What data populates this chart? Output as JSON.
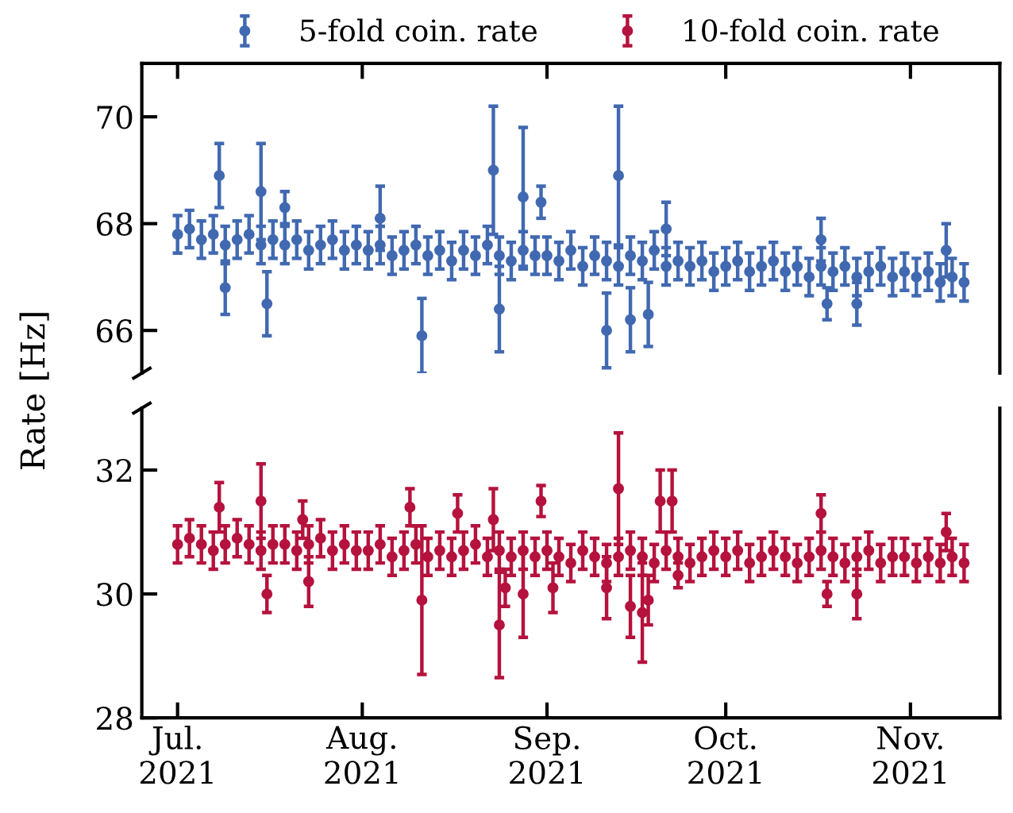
{
  "chart_data": [
    {
      "type": "scatter",
      "ylabel": "Rate [Hz]",
      "legend": "top",
      "marker": "circle",
      "grid": false,
      "tick_labels": "y",
      "xlim": [
        "2021-06-25",
        "2021-11-16"
      ],
      "ylim": [
        65.2,
        71.0
      ],
      "yticks": [
        66,
        68,
        70
      ],
      "xticks": [
        {
          "value": "2021-07-01",
          "label": null
        },
        {
          "value": "2021-08-01",
          "label": null
        },
        {
          "value": "2021-09-01",
          "label": null
        },
        {
          "value": "2021-10-01",
          "label": null
        },
        {
          "value": "2021-11-01",
          "label": null
        }
      ],
      "series": [
        {
          "name": "5-fold coin. rate",
          "color": "#4169b1",
          "x": [
            "2021-07-01",
            "2021-07-03",
            "2021-07-05",
            "2021-07-07",
            "2021-07-09",
            "2021-07-11",
            "2021-07-13",
            "2021-07-15",
            "2021-07-17",
            "2021-07-19",
            "2021-07-21",
            "2021-07-23",
            "2021-07-25",
            "2021-07-27",
            "2021-07-29",
            "2021-07-31",
            "2021-08-02",
            "2021-08-04",
            "2021-08-06",
            "2021-08-08",
            "2021-08-10",
            "2021-08-12",
            "2021-08-14",
            "2021-08-16",
            "2021-08-18",
            "2021-08-20",
            "2021-08-22",
            "2021-08-24",
            "2021-08-26",
            "2021-08-28",
            "2021-08-30",
            "2021-09-01",
            "2021-09-03",
            "2021-09-05",
            "2021-09-07",
            "2021-09-09",
            "2021-09-11",
            "2021-09-13",
            "2021-09-15",
            "2021-09-17",
            "2021-09-19",
            "2021-09-21",
            "2021-09-23",
            "2021-09-25",
            "2021-09-27",
            "2021-09-29",
            "2021-10-01",
            "2021-10-03",
            "2021-10-05",
            "2021-10-07",
            "2021-10-09",
            "2021-10-11",
            "2021-10-13",
            "2021-10-15",
            "2021-10-17",
            "2021-10-19",
            "2021-10-21",
            "2021-10-23",
            "2021-10-25",
            "2021-10-27",
            "2021-10-29",
            "2021-10-31",
            "2021-11-02",
            "2021-11-04",
            "2021-11-06",
            "2021-11-08",
            "2021-11-10",
            "2021-07-08",
            "2021-07-09",
            "2021-07-15",
            "2021-07-16",
            "2021-07-19",
            "2021-08-04",
            "2021-08-11",
            "2021-08-23",
            "2021-08-24",
            "2021-08-28",
            "2021-08-31",
            "2021-09-11",
            "2021-09-13",
            "2021-09-15",
            "2021-09-18",
            "2021-09-21",
            "2021-10-17",
            "2021-10-18",
            "2021-10-23",
            "2021-11-07"
          ],
          "values": [
            67.8,
            67.9,
            67.7,
            67.8,
            67.6,
            67.7,
            67.8,
            67.6,
            67.7,
            67.6,
            67.7,
            67.5,
            67.6,
            67.7,
            67.5,
            67.6,
            67.5,
            67.6,
            67.4,
            67.5,
            67.6,
            67.4,
            67.5,
            67.3,
            67.5,
            67.4,
            67.6,
            67.4,
            67.3,
            67.5,
            67.4,
            67.4,
            67.3,
            67.5,
            67.2,
            67.4,
            67.3,
            67.2,
            67.4,
            67.3,
            67.5,
            67.2,
            67.3,
            67.2,
            67.3,
            67.1,
            67.2,
            67.3,
            67.1,
            67.2,
            67.3,
            67.1,
            67.2,
            67.0,
            67.2,
            67.1,
            67.2,
            67.0,
            67.1,
            67.2,
            67.0,
            67.1,
            67.0,
            67.1,
            66.9,
            67.0,
            66.9,
            68.9,
            66.8,
            68.6,
            66.5,
            68.3,
            68.1,
            65.9,
            69.0,
            66.4,
            68.5,
            68.4,
            66.0,
            68.9,
            66.2,
            66.3,
            67.9,
            67.7,
            66.5,
            66.5,
            67.5
          ],
          "errors": [
            0.35,
            0.35,
            0.35,
            0.35,
            0.35,
            0.35,
            0.35,
            0.35,
            0.35,
            0.35,
            0.35,
            0.35,
            0.35,
            0.35,
            0.35,
            0.35,
            0.35,
            0.35,
            0.35,
            0.35,
            0.35,
            0.35,
            0.35,
            0.35,
            0.35,
            0.35,
            0.35,
            0.35,
            0.35,
            0.35,
            0.35,
            0.35,
            0.35,
            0.35,
            0.35,
            0.35,
            0.35,
            0.35,
            0.35,
            0.35,
            0.35,
            0.35,
            0.35,
            0.35,
            0.35,
            0.35,
            0.35,
            0.35,
            0.35,
            0.35,
            0.35,
            0.35,
            0.35,
            0.35,
            0.35,
            0.35,
            0.35,
            0.35,
            0.35,
            0.35,
            0.35,
            0.35,
            0.35,
            0.35,
            0.35,
            0.35,
            0.35,
            0.6,
            0.5,
            0.9,
            0.6,
            0.3,
            0.6,
            0.7,
            1.2,
            0.8,
            1.3,
            0.3,
            0.7,
            1.3,
            0.6,
            0.6,
            0.5,
            0.4,
            0.3,
            0.4,
            0.5
          ]
        }
      ]
    },
    {
      "type": "scatter",
      "legend": "top",
      "marker": "circle",
      "grid": false,
      "xlim": [
        "2021-06-25",
        "2021-11-16"
      ],
      "ylim": [
        28,
        33
      ],
      "yticks": [
        28,
        30,
        32
      ],
      "xticks": [
        {
          "value": "2021-07-01",
          "label": "Jul.\n2021"
        },
        {
          "value": "2021-08-01",
          "label": "Aug.\n2021"
        },
        {
          "value": "2021-09-01",
          "label": "Sep.\n2021"
        },
        {
          "value": "2021-10-01",
          "label": "Oct.\n2021"
        },
        {
          "value": "2021-11-01",
          "label": "Nov.\n2021"
        }
      ],
      "series": [
        {
          "name": "10-fold coin. rate",
          "color": "#b5123d",
          "x": [
            "2021-07-01",
            "2021-07-03",
            "2021-07-05",
            "2021-07-07",
            "2021-07-09",
            "2021-07-11",
            "2021-07-13",
            "2021-07-15",
            "2021-07-17",
            "2021-07-19",
            "2021-07-21",
            "2021-07-23",
            "2021-07-25",
            "2021-07-27",
            "2021-07-29",
            "2021-07-31",
            "2021-08-02",
            "2021-08-04",
            "2021-08-06",
            "2021-08-08",
            "2021-08-10",
            "2021-08-12",
            "2021-08-14",
            "2021-08-16",
            "2021-08-18",
            "2021-08-20",
            "2021-08-22",
            "2021-08-24",
            "2021-08-26",
            "2021-08-28",
            "2021-08-30",
            "2021-09-01",
            "2021-09-03",
            "2021-09-05",
            "2021-09-07",
            "2021-09-09",
            "2021-09-11",
            "2021-09-13",
            "2021-09-15",
            "2021-09-17",
            "2021-09-19",
            "2021-09-21",
            "2021-09-23",
            "2021-09-25",
            "2021-09-27",
            "2021-09-29",
            "2021-10-01",
            "2021-10-03",
            "2021-10-05",
            "2021-10-07",
            "2021-10-09",
            "2021-10-11",
            "2021-10-13",
            "2021-10-15",
            "2021-10-17",
            "2021-10-19",
            "2021-10-21",
            "2021-10-23",
            "2021-10-25",
            "2021-10-27",
            "2021-10-29",
            "2021-10-31",
            "2021-11-02",
            "2021-11-04",
            "2021-11-06",
            "2021-11-08",
            "2021-11-10",
            "2021-07-08",
            "2021-07-15",
            "2021-07-16",
            "2021-07-22",
            "2021-07-23",
            "2021-08-09",
            "2021-08-11",
            "2021-08-17",
            "2021-08-23",
            "2021-08-24",
            "2021-08-25",
            "2021-08-28",
            "2021-08-31",
            "2021-09-02",
            "2021-09-11",
            "2021-09-13",
            "2021-09-15",
            "2021-09-17",
            "2021-09-18",
            "2021-09-20",
            "2021-09-22",
            "2021-09-23",
            "2021-10-17",
            "2021-10-18",
            "2021-10-23",
            "2021-11-07"
          ],
          "values": [
            30.8,
            30.9,
            30.8,
            30.7,
            30.8,
            30.9,
            30.8,
            30.7,
            30.8,
            30.8,
            30.7,
            30.8,
            30.9,
            30.7,
            30.8,
            30.7,
            30.7,
            30.8,
            30.6,
            30.7,
            30.8,
            30.6,
            30.7,
            30.6,
            30.7,
            30.8,
            30.6,
            30.7,
            30.6,
            30.7,
            30.6,
            30.7,
            30.6,
            30.5,
            30.7,
            30.6,
            30.5,
            30.6,
            30.7,
            30.6,
            30.5,
            30.7,
            30.6,
            30.5,
            30.6,
            30.7,
            30.6,
            30.7,
            30.5,
            30.6,
            30.7,
            30.6,
            30.5,
            30.6,
            30.7,
            30.6,
            30.5,
            30.6,
            30.7,
            30.5,
            30.6,
            30.6,
            30.5,
            30.6,
            30.5,
            30.6,
            30.5,
            31.4,
            31.5,
            30.0,
            31.2,
            30.2,
            31.4,
            29.9,
            31.3,
            31.2,
            29.5,
            30.1,
            30.0,
            31.5,
            30.1,
            30.1,
            31.7,
            29.8,
            29.7,
            29.9,
            31.5,
            31.5,
            30.3,
            31.3,
            30.0,
            30.0,
            31.0
          ],
          "errors": [
            0.3,
            0.3,
            0.3,
            0.3,
            0.3,
            0.3,
            0.3,
            0.3,
            0.3,
            0.3,
            0.3,
            0.3,
            0.3,
            0.3,
            0.3,
            0.3,
            0.3,
            0.3,
            0.3,
            0.3,
            0.3,
            0.3,
            0.3,
            0.3,
            0.3,
            0.3,
            0.3,
            0.3,
            0.3,
            0.3,
            0.3,
            0.3,
            0.3,
            0.3,
            0.3,
            0.3,
            0.3,
            0.3,
            0.3,
            0.3,
            0.3,
            0.3,
            0.3,
            0.3,
            0.3,
            0.3,
            0.3,
            0.3,
            0.3,
            0.3,
            0.3,
            0.3,
            0.3,
            0.3,
            0.3,
            0.3,
            0.3,
            0.3,
            0.3,
            0.3,
            0.3,
            0.3,
            0.3,
            0.3,
            0.3,
            0.3,
            0.3,
            0.4,
            0.6,
            0.3,
            0.3,
            0.4,
            0.3,
            1.2,
            0.3,
            0.5,
            0.85,
            0.3,
            0.7,
            0.25,
            0.4,
            0.5,
            0.9,
            0.5,
            0.8,
            0.4,
            0.5,
            0.5,
            0.2,
            0.3,
            0.2,
            0.4,
            0.3
          ]
        }
      ]
    }
  ]
}
